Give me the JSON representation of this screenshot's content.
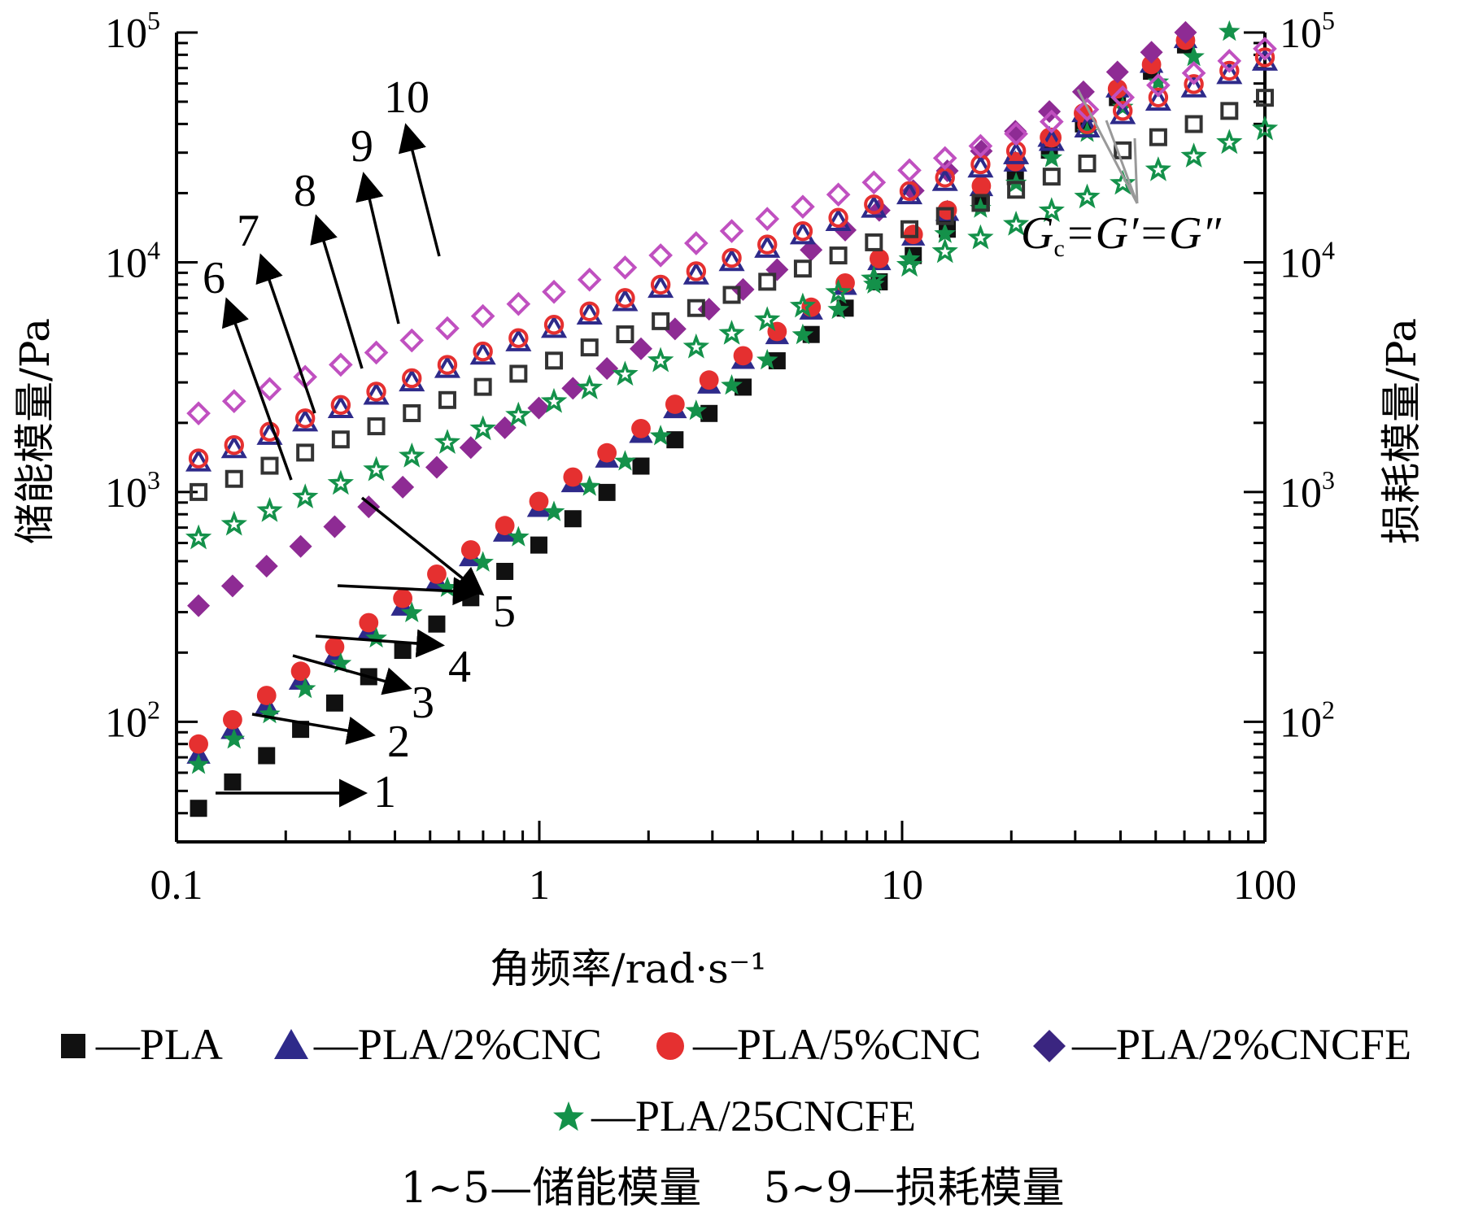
{
  "chart_data": {
    "type": "scatter",
    "xscale": "log",
    "yscale": "log",
    "xlim": [
      0.1,
      100
    ],
    "ylim": [
      30,
      100000
    ],
    "xlabel": "角频率/rad·s⁻¹",
    "ylabel_left": "储能模量/Pa",
    "ylabel_right": "损耗模量/Pa",
    "x_ticks": [
      "0.1",
      "1",
      "10",
      "100"
    ],
    "y_ticks": [
      {
        "base": "10",
        "exp": "2",
        "value": 100
      },
      {
        "base": "10",
        "exp": "3",
        "value": 1000
      },
      {
        "base": "10",
        "exp": "4",
        "value": 10000
      },
      {
        "base": "10",
        "exp": "5",
        "value": 100000
      }
    ],
    "legend": {
      "row1": [
        {
          "label": "—PLA",
          "marker": "square",
          "color": "#111111"
        },
        {
          "label": "—PLA/2%CNC",
          "marker": "triangle",
          "color": "#2e2a8a"
        },
        {
          "label": "—PLA/5%CNC",
          "marker": "circle",
          "color": "#e53030"
        },
        {
          "label": "—PLA/2%CNCFE",
          "marker": "diamond",
          "color": "#3a2580"
        }
      ],
      "row2": [
        {
          "label": "—PLA/25CNCFE",
          "marker": "star",
          "color": "#14914a"
        }
      ]
    },
    "note": {
      "left": "1~5—储能模量",
      "right": "5~9—损耗模量"
    },
    "crossover_label": {
      "g": "G",
      "sub": "c",
      "rest": "=G′=G″"
    },
    "curve_labels": [
      "1",
      "2",
      "3",
      "4",
      "5",
      "6",
      "7",
      "8",
      "9",
      "10"
    ],
    "series": [
      {
        "name": "PLA",
        "modulus": "storage",
        "marker": "square",
        "filled": true,
        "color": "#111111",
        "x_start": 0.115,
        "x_end": 75,
        "y_start": 42,
        "y_end": 115000
      },
      {
        "name": "PLA/2%CNC",
        "modulus": "storage",
        "marker": "triangle",
        "filled": true,
        "color": "#2e2a8a",
        "x_start": 0.115,
        "x_end": 75,
        "y_start": 72,
        "y_end": 120000
      },
      {
        "name": "PLA/5%CNC",
        "modulus": "storage",
        "marker": "circle",
        "filled": true,
        "color": "#e53030",
        "x_start": 0.115,
        "x_end": 75,
        "y_start": 80,
        "y_end": 118000
      },
      {
        "name": "PLA/2%CNCFE",
        "modulus": "storage",
        "marker": "diamond",
        "filled": true,
        "color": "#8e2b94",
        "x_start": 0.115,
        "x_end": 75,
        "y_start": 320,
        "y_end": 122000
      },
      {
        "name": "PLA/25CNCFE",
        "modulus": "storage",
        "marker": "star",
        "filled": true,
        "color": "#14914a",
        "x_start": 0.115,
        "x_end": 100,
        "y_start": 65,
        "y_end": 130000
      },
      {
        "name": "PLA",
        "modulus": "loss",
        "marker": "square",
        "filled": false,
        "color": "#333333",
        "x_start": 0.115,
        "x_end": 100,
        "y_start": 1000,
        "y_end": 52000
      },
      {
        "name": "PLA/2%CNC",
        "modulus": "loss",
        "marker": "triangle",
        "filled": false,
        "color": "#2e2a8a",
        "x_start": 0.115,
        "x_end": 100,
        "y_start": 1350,
        "y_end": 75000
      },
      {
        "name": "PLA/5%CNC",
        "modulus": "loss",
        "marker": "circle",
        "filled": false,
        "color": "#e53030",
        "x_start": 0.115,
        "x_end": 100,
        "y_start": 1400,
        "y_end": 78000
      },
      {
        "name": "PLA/2%CNCFE",
        "modulus": "loss",
        "marker": "diamond",
        "filled": false,
        "color": "#c050c0",
        "x_start": 0.115,
        "x_end": 100,
        "y_start": 2200,
        "y_end": 85000
      },
      {
        "name": "PLA/25CNCFE",
        "modulus": "loss",
        "marker": "star",
        "filled": false,
        "color": "#14914a",
        "x_start": 0.115,
        "x_end": 100,
        "y_start": 630,
        "y_end": 38000
      }
    ]
  }
}
